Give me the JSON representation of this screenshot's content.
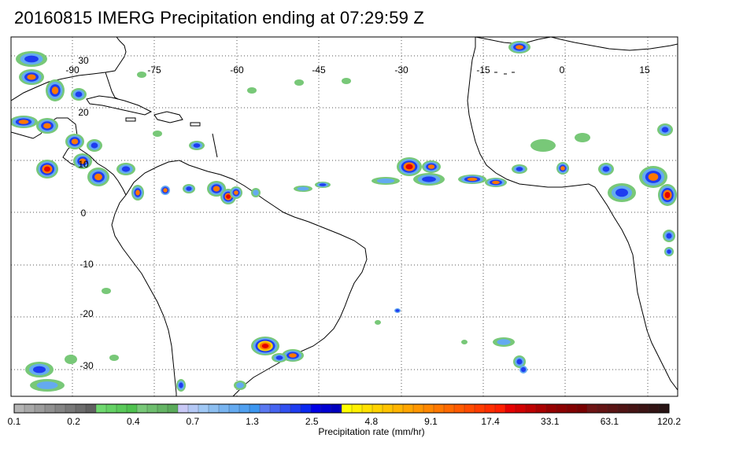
{
  "title": "20160815 IMERG Precipitation ending at 07:29:59 Z",
  "map": {
    "lon_range": [
      -100,
      20
    ],
    "lat_range": [
      -37,
      36
    ],
    "lon_ticks": [
      "-90",
      "-75",
      "-60",
      "-45",
      "-30",
      "-15",
      "0",
      "15"
    ],
    "lat_ticks": [
      "30",
      "20",
      "10",
      "0",
      "-10",
      "-20",
      "-30"
    ],
    "colors": {
      "land_outline": "#000000",
      "grid": "#555555"
    }
  },
  "colorbar": {
    "caption": "Precipitation rate (mm/hr)",
    "tick_labels": [
      "0.1",
      "0.2",
      "0.4",
      "0.7",
      "1.3",
      "2.5",
      "4.8",
      "9.1",
      "17.4",
      "33.1",
      "63.1",
      "120.2"
    ],
    "swatches": [
      "#b4b4b4",
      "#a8a8a8",
      "#9c9c9c",
      "#909090",
      "#848484",
      "#787878",
      "#6c6c6c",
      "#606060",
      "#6fd96f",
      "#64d164",
      "#59c959",
      "#4ec14e",
      "#78c878",
      "#6ebe6e",
      "#64b464",
      "#5aaa5a",
      "#c8c8f5",
      "#b4c8f5",
      "#a0c8f5",
      "#8cbef0",
      "#78b4f0",
      "#64aaf0",
      "#50a0f0",
      "#3c96f0",
      "#5a78f0",
      "#4664f0",
      "#3250f0",
      "#1e3cf0",
      "#0a28f0",
      "#0000e6",
      "#0000d2",
      "#0000be",
      "#ffff00",
      "#fff000",
      "#ffe100",
      "#ffd200",
      "#ffc300",
      "#ffb400",
      "#ffa500",
      "#ff9600",
      "#ff8700",
      "#ff7800",
      "#ff6900",
      "#ff5a00",
      "#ff4b00",
      "#ff3c00",
      "#ff2d00",
      "#ff1e00",
      "#e60000",
      "#d20000",
      "#be0000",
      "#aa0000",
      "#960000",
      "#8c0000",
      "#820000",
      "#780000",
      "#6e1414",
      "#641414",
      "#5a1414",
      "#501414",
      "#461414",
      "#3c1414",
      "#321414",
      "#281414"
    ]
  }
}
